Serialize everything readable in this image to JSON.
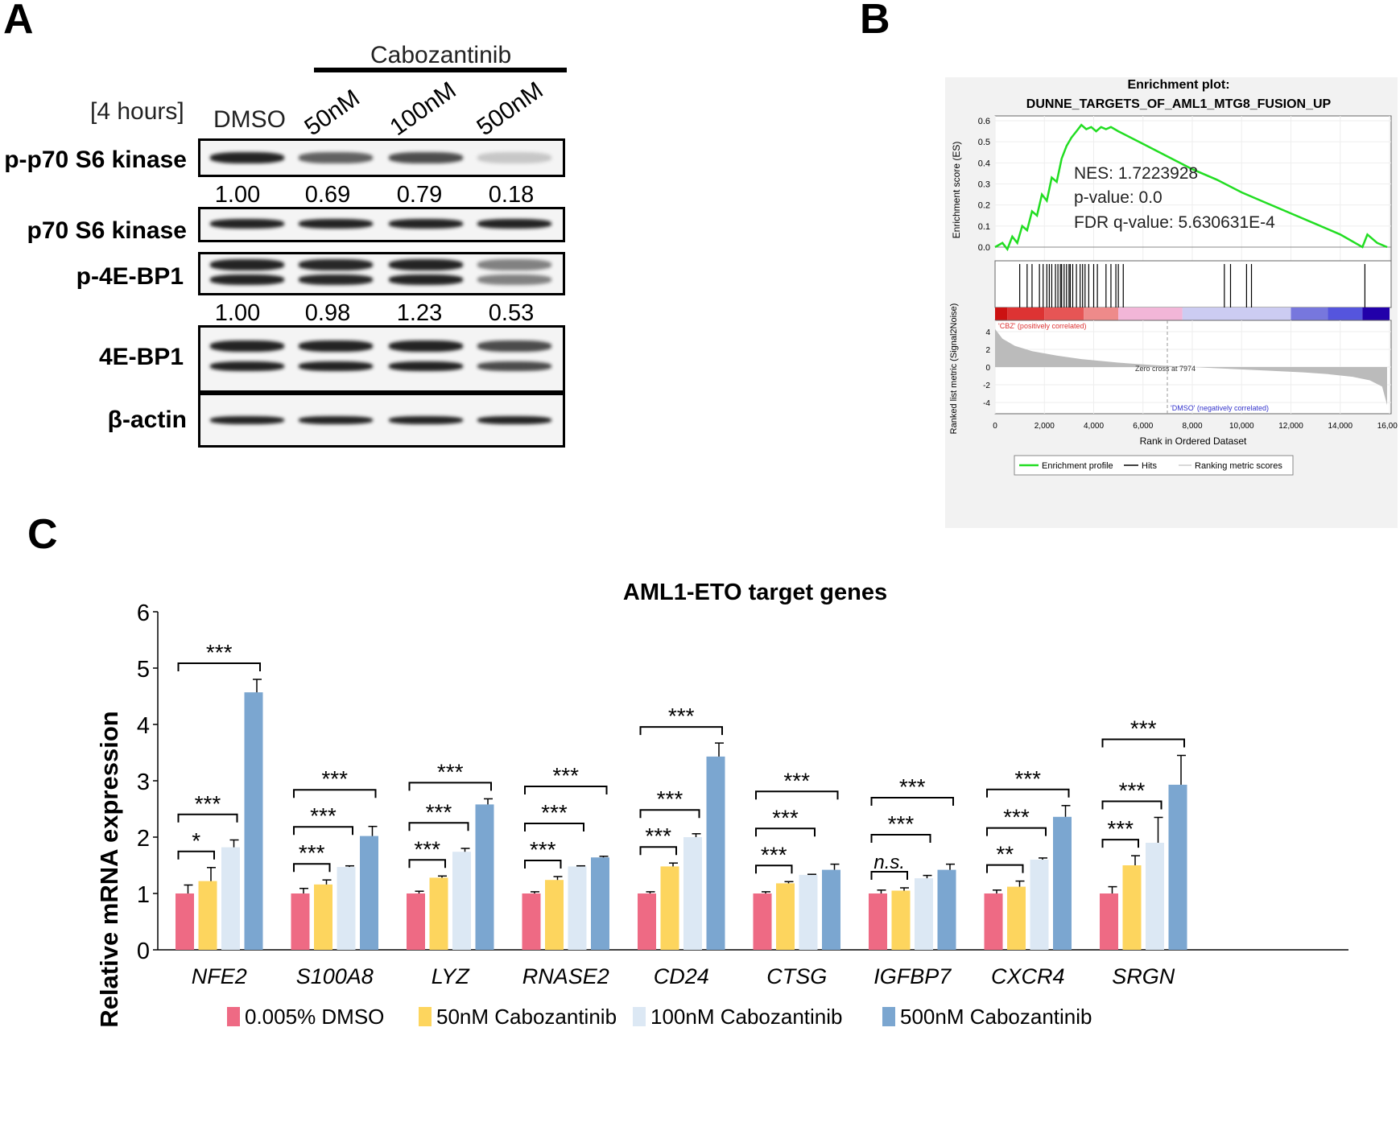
{
  "panels": {
    "a": "A",
    "b": "B",
    "c": "C"
  },
  "western": {
    "treatment": "Cabozantinib",
    "time": "[4 hours]",
    "lanes": [
      "DMSO",
      "50nM",
      "100nM",
      "500nM"
    ],
    "rows": [
      {
        "label": "p-p70 S6 kinase",
        "intensity": [
          1.0,
          0.69,
          0.79,
          0.18
        ]
      },
      {
        "label": "p70 S6 kinase",
        "intensity": [
          1,
          1,
          1,
          1
        ]
      },
      {
        "label": "p-4E-BP1",
        "intensity": [
          1.0,
          0.98,
          1.23,
          0.53
        ]
      },
      {
        "label": "4E-BP1",
        "intensity": [
          1,
          1,
          1,
          0.8
        ]
      },
      {
        "label": "β-actin",
        "intensity": [
          1,
          1,
          1,
          1
        ]
      }
    ],
    "quant1": [
      "1.00",
      "0.69",
      "0.79",
      "0.18"
    ],
    "quant2": [
      "1.00",
      "0.98",
      "1.23",
      "0.53"
    ]
  },
  "gsea": {
    "title1": "Enrichment plot:",
    "title2": "DUNNE_TARGETS_OF_AML1_MTG8_FUSION_UP",
    "ylabel_es": "Enrichment score (ES)",
    "ylabel_metric": "Ranked list metric (Signal2Noise)",
    "xlabel": "Rank in Ordered Dataset",
    "nes": "NES: 1.7223928",
    "pvalue": "p-value: 0.0",
    "fdr": "FDR q-value: 5.630631E-4",
    "pos_label": "'CBZ' (positively correlated)",
    "neg_label": "'DMSO' (negatively correlated)",
    "zero_cross": "Zero cross at 7974",
    "es_ticks": [
      "0.6",
      "0.5",
      "0.4",
      "0.3",
      "0.2",
      "0.1",
      "0.0"
    ],
    "metric_ticks": [
      "4",
      "2",
      "0",
      "-2",
      "-4"
    ],
    "x_ticks": [
      "0",
      "2,000",
      "4,000",
      "6,000",
      "8,000",
      "10,000",
      "12,000",
      "14,000",
      "16,000"
    ],
    "legend": [
      "Enrichment profile",
      "Hits",
      "Ranking metric scores"
    ],
    "colors": {
      "profile": "#22dd22",
      "hits": "#000000",
      "metric": "#bbbbbb"
    }
  },
  "chart_data": {
    "type": "bar",
    "title": "AML1-ETO target genes",
    "ylabel": "Relative mRNA expression",
    "ylim": [
      0,
      6
    ],
    "yticks": [
      "0",
      "1",
      "2",
      "3",
      "4",
      "5",
      "6"
    ],
    "categories": [
      "NFE2",
      "S100A8",
      "LYZ",
      "RNASE2",
      "CD24",
      "CTSG",
      "IGFBP7",
      "CXCR4",
      "SRGN"
    ],
    "series": [
      {
        "name": "0.005% DMSO",
        "color": "#ee6a84",
        "values": [
          1,
          1,
          1,
          1,
          1,
          1,
          1,
          1,
          1
        ],
        "errors": [
          0.15,
          0.09,
          0.04,
          0.03,
          0.03,
          0.03,
          0.06,
          0.06,
          0.12
        ]
      },
      {
        "name": "50nM Cabozantinib",
        "color": "#fdd55e",
        "values": [
          1.22,
          1.16,
          1.28,
          1.24,
          1.48,
          1.18,
          1.05,
          1.12,
          1.5
        ],
        "errors": [
          0.24,
          0.08,
          0.03,
          0.06,
          0.06,
          0.03,
          0.05,
          0.1,
          0.17
        ]
      },
      {
        "name": "100nM Cabozantinib",
        "color": "#dce8f4",
        "values": [
          1.82,
          1.47,
          1.74,
          1.48,
          2.0,
          1.33,
          1.27,
          1.6,
          1.9
        ],
        "errors": [
          0.13,
          0.02,
          0.06,
          0.01,
          0.06,
          0.01,
          0.05,
          0.03,
          0.45
        ]
      },
      {
        "name": "500nM Cabozantinib",
        "color": "#7ba6d0",
        "values": [
          4.57,
          2.02,
          2.58,
          1.64,
          3.43,
          1.42,
          1.42,
          2.36,
          2.93
        ],
        "errors": [
          0.23,
          0.17,
          0.1,
          0.02,
          0.24,
          0.1,
          0.1,
          0.2,
          0.52
        ]
      }
    ],
    "significance": [
      [
        "*",
        "***",
        "***"
      ],
      [
        "***",
        "***",
        "***"
      ],
      [
        "***",
        "***",
        "***"
      ],
      [
        "***",
        "***",
        "***"
      ],
      [
        "***",
        "***",
        "***"
      ],
      [
        "***",
        "***",
        "***"
      ],
      [
        "n.s.",
        "***",
        "***"
      ],
      [
        "**",
        "***",
        "***"
      ],
      [
        "***",
        "***",
        "***"
      ]
    ],
    "legend_position": "bottom"
  }
}
